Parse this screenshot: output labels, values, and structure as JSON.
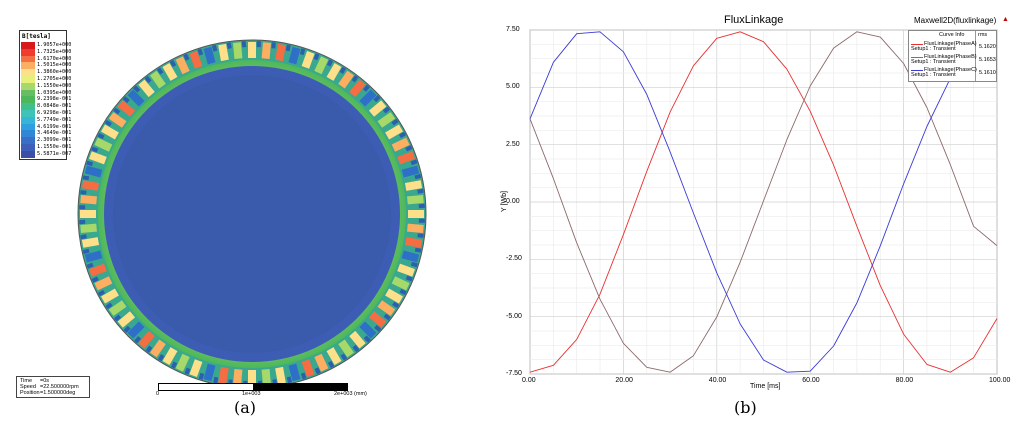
{
  "panel_a": {
    "legend_title": "B[tesla]",
    "legend": [
      {
        "label": "1.9057e+000",
        "color": "#d7191c"
      },
      {
        "label": "1.7325e+000",
        "color": "#ef3b2c"
      },
      {
        "label": "1.6170e+000",
        "color": "#f46d43"
      },
      {
        "label": "1.5015e+000",
        "color": "#fdae61"
      },
      {
        "label": "1.3860e+000",
        "color": "#fee08b"
      },
      {
        "label": "1.2705e+000",
        "color": "#e6f07a"
      },
      {
        "label": "1.1550e+000",
        "color": "#a6d96a"
      },
      {
        "label": "1.0395e+000",
        "color": "#66bd63"
      },
      {
        "label": "9.2398e-001",
        "color": "#4cb85a"
      },
      {
        "label": "8.0848e-001",
        "color": "#3fbf8a"
      },
      {
        "label": "6.9298e-001",
        "color": "#3dc3b7"
      },
      {
        "label": "5.7749e-001",
        "color": "#36b5d8"
      },
      {
        "label": "4.6199e-001",
        "color": "#2ea0e0"
      },
      {
        "label": "3.4649e-001",
        "color": "#3187d6"
      },
      {
        "label": "2.3099e-001",
        "color": "#3a6fc8"
      },
      {
        "label": "1.1550e-001",
        "color": "#3d5fb8"
      },
      {
        "label": "5.5871e-007",
        "color": "#3b4fa8"
      }
    ],
    "info": [
      {
        "key": "Time",
        "value": "=0s"
      },
      {
        "key": "Speed",
        "value": "=22.500000rpm"
      },
      {
        "key": "Position",
        "value": "=1.500000deg"
      }
    ],
    "scale_labels": [
      "0",
      "1e+003",
      "2e+003 (mm)"
    ],
    "caption": "(a)"
  },
  "panel_b": {
    "caption": "(b)",
    "chart_data": {
      "type": "line",
      "title": "FluxLinkage",
      "subtitle": "Maxwell2D(fluxlinkage)",
      "xlabel": "Time [ms]",
      "ylabel": "Y [Wb]",
      "xlim": [
        0,
        100
      ],
      "ylim": [
        -7.5,
        7.5
      ],
      "xticks": [
        "0.00",
        "20.00",
        "40.00",
        "60.00",
        "80.00",
        "100.00"
      ],
      "yticks": [
        "7.50",
        "5.00",
        "2.50",
        "0.00",
        "-2.50",
        "-5.00",
        "-7.50"
      ],
      "grid": true,
      "legend_placement": "top-right",
      "legend_header": [
        "Curve Info",
        "rms"
      ],
      "series": [
        {
          "name": "FluxLinkage(PhaseA)",
          "setup": "Setup1 : Transient",
          "rms": "5.1620",
          "color": "#e8302f",
          "x": [
            0,
            5,
            10,
            15,
            20,
            25,
            30,
            35,
            40,
            45,
            50,
            55,
            60,
            65,
            70,
            75,
            80,
            85,
            90,
            95,
            100
          ],
          "y": [
            -7.42,
            -7.12,
            -5.99,
            -4.02,
            -1.42,
            1.34,
            3.92,
            5.94,
            7.14,
            7.42,
            6.99,
            5.79,
            3.96,
            1.61,
            -1.06,
            -3.65,
            -5.76,
            -7.08,
            -7.42,
            -6.79,
            -5.08
          ]
        },
        {
          "name": "FluxLinkage(PhaseB)",
          "setup": "Setup1 : Transient",
          "rms": "5.1653",
          "color": "#8b6a6a",
          "x": [
            0,
            5,
            10,
            15,
            20,
            25,
            30,
            35,
            40,
            45,
            50,
            55,
            60,
            65,
            70,
            75,
            80,
            85,
            90,
            95,
            100
          ],
          "y": [
            3.63,
            1.02,
            -1.78,
            -4.24,
            -6.16,
            -7.21,
            -7.42,
            -6.7,
            -5.01,
            -2.62,
            0.05,
            2.72,
            5.06,
            6.71,
            7.42,
            7.19,
            6.04,
            4.12,
            1.63,
            -1.06,
            -1.9
          ]
        },
        {
          "name": "FluxLinkage(PhaseC)",
          "setup": "Setup1 : Transient",
          "rms": "5.1610",
          "color": "#3a3ad6",
          "x": [
            0,
            5,
            10,
            15,
            20,
            25,
            30,
            35,
            40,
            45,
            50,
            55,
            60,
            65,
            70,
            75,
            80,
            85,
            90,
            95,
            100
          ],
          "y": [
            3.63,
            6.09,
            7.34,
            7.42,
            6.55,
            4.69,
            2.19,
            -0.48,
            -3.09,
            -5.32,
            -6.89,
            -7.42,
            -7.38,
            -6.28,
            -4.4,
            -1.91,
            0.79,
            3.29,
            5.39,
            6.81,
            7.42
          ]
        }
      ]
    }
  }
}
